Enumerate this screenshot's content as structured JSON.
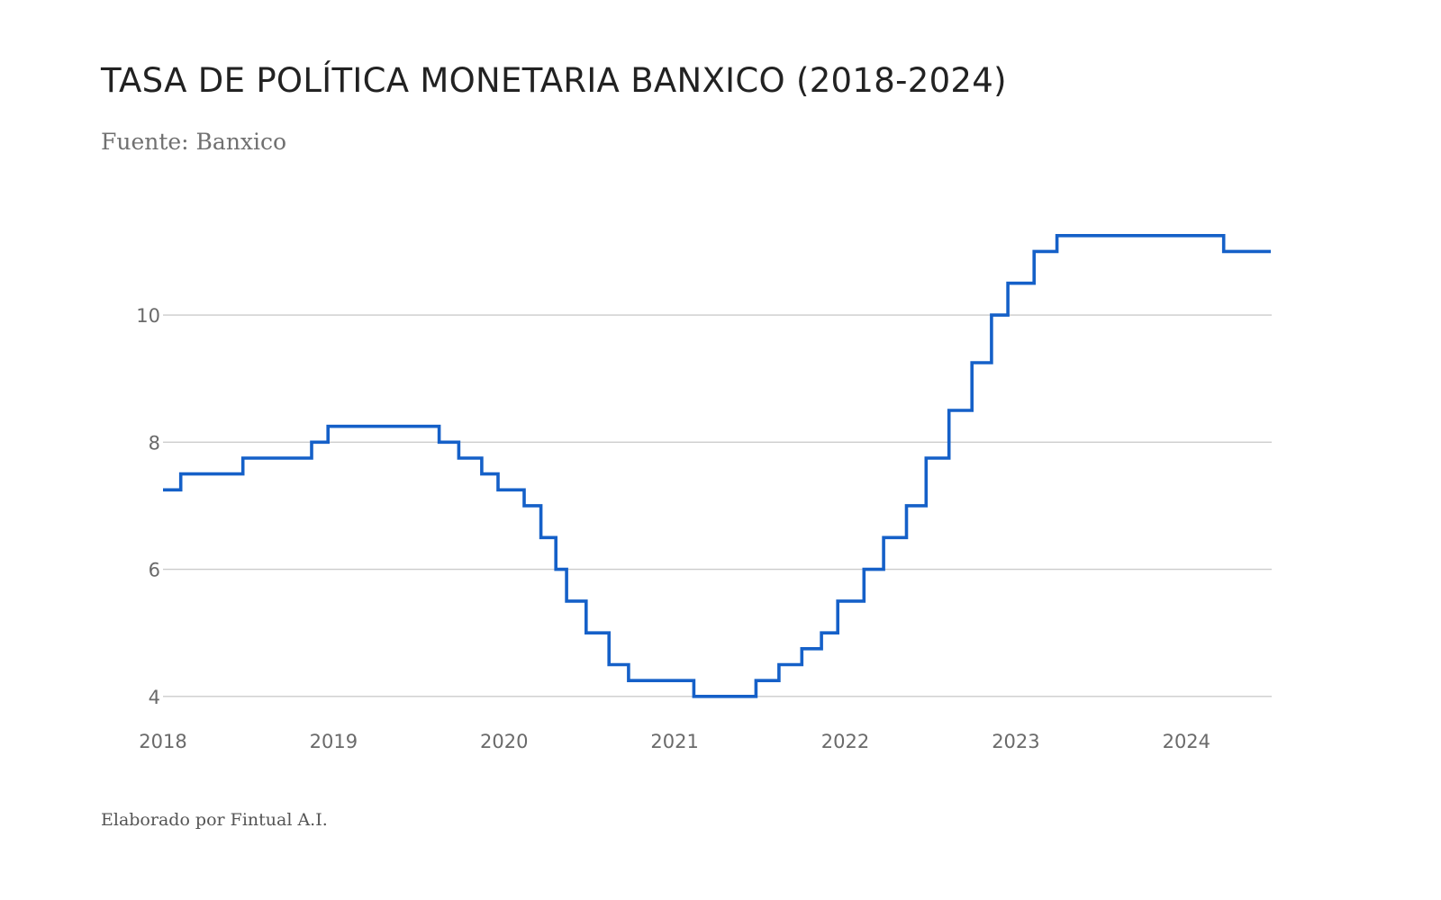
{
  "chart_data": {
    "type": "line",
    "title": "TASA DE POLÍTICA MONETARIA BANXICO (2018-2024)",
    "subtitle": "Fuente: Banxico",
    "footer": "Elaborado por Fintual A.I.",
    "xlabel": "",
    "ylabel": "",
    "step": true,
    "grid": "horizontal",
    "legend": "none",
    "xlim": [
      2018,
      2024.5
    ],
    "ylim": [
      3.7,
      11.7
    ],
    "x_ticks": [
      "2018",
      "2019",
      "2020",
      "2021",
      "2022",
      "2023",
      "2024"
    ],
    "y_ticks": [
      "4",
      "6",
      "8",
      "10"
    ],
    "series": [
      {
        "color": "#1560c8",
        "points": [
          {
            "date": "2018-01-01",
            "value": 7.25
          },
          {
            "date": "2018-02-08",
            "value": 7.5
          },
          {
            "date": "2018-06-21",
            "value": 7.75
          },
          {
            "date": "2018-11-15",
            "value": 8.0
          },
          {
            "date": "2018-12-20",
            "value": 8.25
          },
          {
            "date": "2019-08-15",
            "value": 8.0
          },
          {
            "date": "2019-09-26",
            "value": 7.75
          },
          {
            "date": "2019-11-14",
            "value": 7.5
          },
          {
            "date": "2019-12-19",
            "value": 7.25
          },
          {
            "date": "2020-02-13",
            "value": 7.0
          },
          {
            "date": "2020-03-20",
            "value": 6.5
          },
          {
            "date": "2020-04-21",
            "value": 6.0
          },
          {
            "date": "2020-05-14",
            "value": 5.5
          },
          {
            "date": "2020-06-25",
            "value": 5.0
          },
          {
            "date": "2020-08-13",
            "value": 4.5
          },
          {
            "date": "2020-09-24",
            "value": 4.25
          },
          {
            "date": "2021-02-11",
            "value": 4.0
          },
          {
            "date": "2021-06-24",
            "value": 4.25
          },
          {
            "date": "2021-08-12",
            "value": 4.5
          },
          {
            "date": "2021-09-30",
            "value": 4.75
          },
          {
            "date": "2021-11-11",
            "value": 5.0
          },
          {
            "date": "2021-12-16",
            "value": 5.5
          },
          {
            "date": "2022-02-10",
            "value": 6.0
          },
          {
            "date": "2022-03-24",
            "value": 6.5
          },
          {
            "date": "2022-05-12",
            "value": 7.0
          },
          {
            "date": "2022-06-23",
            "value": 7.75
          },
          {
            "date": "2022-08-11",
            "value": 8.5
          },
          {
            "date": "2022-09-29",
            "value": 9.25
          },
          {
            "date": "2022-11-10",
            "value": 10.0
          },
          {
            "date": "2022-12-15",
            "value": 10.5
          },
          {
            "date": "2023-02-09",
            "value": 11.0
          },
          {
            "date": "2023-03-30",
            "value": 11.25
          },
          {
            "date": "2024-03-21",
            "value": 11.0
          },
          {
            "date": "2024-06-30",
            "value": 11.0
          }
        ]
      }
    ]
  }
}
